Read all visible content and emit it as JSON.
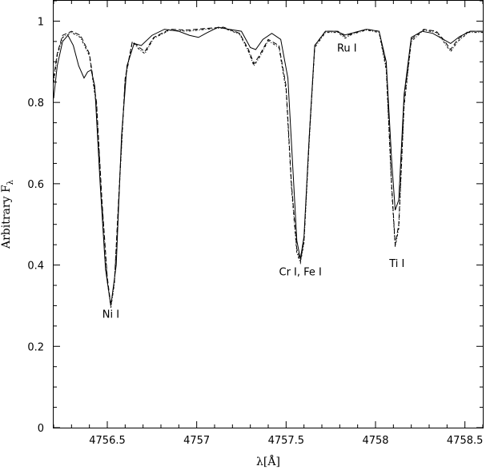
{
  "chart_data": {
    "type": "line",
    "xlabel": "λ[Å]",
    "ylabel": "Arbitrary F",
    "ylabel_subscript": "λ",
    "xlim": [
      4756.2,
      4758.6
    ],
    "ylim": [
      0,
      1.05
    ],
    "x_ticks": [
      {
        "value": 4756.5,
        "label": "4756.5"
      },
      {
        "value": 4757.0,
        "label": "4757"
      },
      {
        "value": 4757.5,
        "label": "4757.5"
      },
      {
        "value": 4758.0,
        "label": "4758"
      },
      {
        "value": 4758.5,
        "label": "4758.5"
      }
    ],
    "y_ticks": [
      {
        "value": 0,
        "label": "0"
      },
      {
        "value": 0.2,
        "label": "0.2"
      },
      {
        "value": 0.4,
        "label": "0.4"
      },
      {
        "value": 0.6,
        "label": "0.6"
      },
      {
        "value": 0.8,
        "label": "0.8"
      },
      {
        "value": 1.0,
        "label": "1"
      }
    ],
    "grid": false,
    "series": [
      {
        "style": "solid",
        "points": [
          [
            4756.2,
            0.81
          ],
          [
            4756.22,
            0.89
          ],
          [
            4756.25,
            0.95
          ],
          [
            4756.28,
            0.965
          ],
          [
            4756.31,
            0.94
          ],
          [
            4756.34,
            0.89
          ],
          [
            4756.37,
            0.86
          ],
          [
            4756.39,
            0.875
          ],
          [
            4756.41,
            0.88
          ],
          [
            4756.43,
            0.84
          ],
          [
            4756.46,
            0.6
          ],
          [
            4756.49,
            0.39
          ],
          [
            4756.52,
            0.3
          ],
          [
            4756.55,
            0.4
          ],
          [
            4756.58,
            0.72
          ],
          [
            4756.61,
            0.89
          ],
          [
            4756.65,
            0.945
          ],
          [
            4756.69,
            0.94
          ],
          [
            4756.75,
            0.965
          ],
          [
            4756.82,
            0.98
          ],
          [
            4756.9,
            0.975
          ],
          [
            4756.96,
            0.965
          ],
          [
            4757.01,
            0.96
          ],
          [
            4757.06,
            0.972
          ],
          [
            4757.12,
            0.985
          ],
          [
            4757.18,
            0.98
          ],
          [
            4757.25,
            0.975
          ],
          [
            4757.3,
            0.935
          ],
          [
            4757.33,
            0.93
          ],
          [
            4757.37,
            0.955
          ],
          [
            4757.42,
            0.97
          ],
          [
            4757.47,
            0.955
          ],
          [
            4757.51,
            0.86
          ],
          [
            4757.54,
            0.62
          ],
          [
            4757.56,
            0.46
          ],
          [
            4757.58,
            0.415
          ],
          [
            4757.6,
            0.47
          ],
          [
            4757.63,
            0.72
          ],
          [
            4757.66,
            0.94
          ],
          [
            4757.72,
            0.975
          ],
          [
            4757.78,
            0.975
          ],
          [
            4757.83,
            0.966
          ],
          [
            4757.88,
            0.972
          ],
          [
            4757.95,
            0.98
          ],
          [
            4758.02,
            0.975
          ],
          [
            4758.06,
            0.9
          ],
          [
            4758.09,
            0.66
          ],
          [
            4758.11,
            0.535
          ],
          [
            4758.13,
            0.56
          ],
          [
            4758.16,
            0.82
          ],
          [
            4758.2,
            0.96
          ],
          [
            4758.26,
            0.975
          ],
          [
            4758.32,
            0.97
          ],
          [
            4758.38,
            0.955
          ],
          [
            4758.42,
            0.945
          ],
          [
            4758.47,
            0.962
          ],
          [
            4758.53,
            0.975
          ],
          [
            4758.6,
            0.975
          ]
        ]
      },
      {
        "style": "dashed",
        "points": [
          [
            4756.2,
            0.86
          ],
          [
            4756.22,
            0.92
          ],
          [
            4756.25,
            0.965
          ],
          [
            4756.3,
            0.975
          ],
          [
            4756.35,
            0.965
          ],
          [
            4756.4,
            0.92
          ],
          [
            4756.44,
            0.8
          ],
          [
            4756.47,
            0.56
          ],
          [
            4756.5,
            0.37
          ],
          [
            4756.52,
            0.3
          ],
          [
            4756.54,
            0.36
          ],
          [
            4756.57,
            0.62
          ],
          [
            4756.6,
            0.86
          ],
          [
            4756.64,
            0.95
          ],
          [
            4756.68,
            0.935
          ],
          [
            4756.71,
            0.925
          ],
          [
            4756.76,
            0.96
          ],
          [
            4756.85,
            0.98
          ],
          [
            4756.95,
            0.978
          ],
          [
            4757.05,
            0.982
          ],
          [
            4757.15,
            0.985
          ],
          [
            4757.24,
            0.97
          ],
          [
            4757.29,
            0.93
          ],
          [
            4757.32,
            0.895
          ],
          [
            4757.35,
            0.915
          ],
          [
            4757.4,
            0.955
          ],
          [
            4757.46,
            0.94
          ],
          [
            4757.5,
            0.84
          ],
          [
            4757.53,
            0.6
          ],
          [
            4757.56,
            0.44
          ],
          [
            4757.58,
            0.41
          ],
          [
            4757.6,
            0.46
          ],
          [
            4757.63,
            0.72
          ],
          [
            4757.66,
            0.94
          ],
          [
            4757.72,
            0.975
          ],
          [
            4757.79,
            0.975
          ],
          [
            4757.83,
            0.962
          ],
          [
            4757.87,
            0.97
          ],
          [
            4757.95,
            0.98
          ],
          [
            4758.02,
            0.975
          ],
          [
            4758.06,
            0.89
          ],
          [
            4758.09,
            0.6
          ],
          [
            4758.11,
            0.45
          ],
          [
            4758.13,
            0.5
          ],
          [
            4758.16,
            0.8
          ],
          [
            4758.2,
            0.955
          ],
          [
            4758.27,
            0.98
          ],
          [
            4758.34,
            0.975
          ],
          [
            4758.38,
            0.955
          ],
          [
            4758.42,
            0.93
          ],
          [
            4758.46,
            0.955
          ],
          [
            4758.52,
            0.975
          ],
          [
            4758.6,
            0.975
          ]
        ]
      },
      {
        "style": "dash-dot",
        "points": [
          [
            4756.2,
            0.85
          ],
          [
            4756.22,
            0.915
          ],
          [
            4756.25,
            0.96
          ],
          [
            4756.3,
            0.972
          ],
          [
            4756.35,
            0.96
          ],
          [
            4756.4,
            0.915
          ],
          [
            4756.44,
            0.79
          ],
          [
            4756.47,
            0.55
          ],
          [
            4756.5,
            0.36
          ],
          [
            4756.52,
            0.295
          ],
          [
            4756.54,
            0.355
          ],
          [
            4756.57,
            0.61
          ],
          [
            4756.6,
            0.855
          ],
          [
            4756.64,
            0.948
          ],
          [
            4756.68,
            0.93
          ],
          [
            4756.71,
            0.92
          ],
          [
            4756.76,
            0.958
          ],
          [
            4756.85,
            0.978
          ],
          [
            4756.95,
            0.975
          ],
          [
            4757.05,
            0.98
          ],
          [
            4757.15,
            0.983
          ],
          [
            4757.24,
            0.968
          ],
          [
            4757.29,
            0.925
          ],
          [
            4757.32,
            0.89
          ],
          [
            4757.35,
            0.91
          ],
          [
            4757.4,
            0.952
          ],
          [
            4757.46,
            0.935
          ],
          [
            4757.5,
            0.83
          ],
          [
            4757.53,
            0.59
          ],
          [
            4757.56,
            0.43
          ],
          [
            4757.58,
            0.405
          ],
          [
            4757.6,
            0.455
          ],
          [
            4757.63,
            0.71
          ],
          [
            4757.66,
            0.935
          ],
          [
            4757.72,
            0.972
          ],
          [
            4757.79,
            0.972
          ],
          [
            4757.83,
            0.958
          ],
          [
            4757.87,
            0.968
          ],
          [
            4757.95,
            0.978
          ],
          [
            4758.02,
            0.972
          ],
          [
            4758.06,
            0.88
          ],
          [
            4758.09,
            0.59
          ],
          [
            4758.11,
            0.445
          ],
          [
            4758.13,
            0.49
          ],
          [
            4758.16,
            0.79
          ],
          [
            4758.2,
            0.95
          ],
          [
            4758.27,
            0.978
          ],
          [
            4758.34,
            0.972
          ],
          [
            4758.38,
            0.95
          ],
          [
            4758.42,
            0.925
          ],
          [
            4758.46,
            0.95
          ],
          [
            4758.52,
            0.972
          ],
          [
            4758.6,
            0.972
          ]
        ]
      }
    ],
    "annotations": [
      {
        "text": "Ni I",
        "x": 4756.52,
        "y": 0.27
      },
      {
        "text": "Cr I, Fe I",
        "x": 4757.58,
        "y": 0.375
      },
      {
        "text": "Ti I",
        "x": 4758.12,
        "y": 0.395
      },
      {
        "text": "Ru I",
        "x": 4757.84,
        "y": 0.925
      }
    ]
  }
}
